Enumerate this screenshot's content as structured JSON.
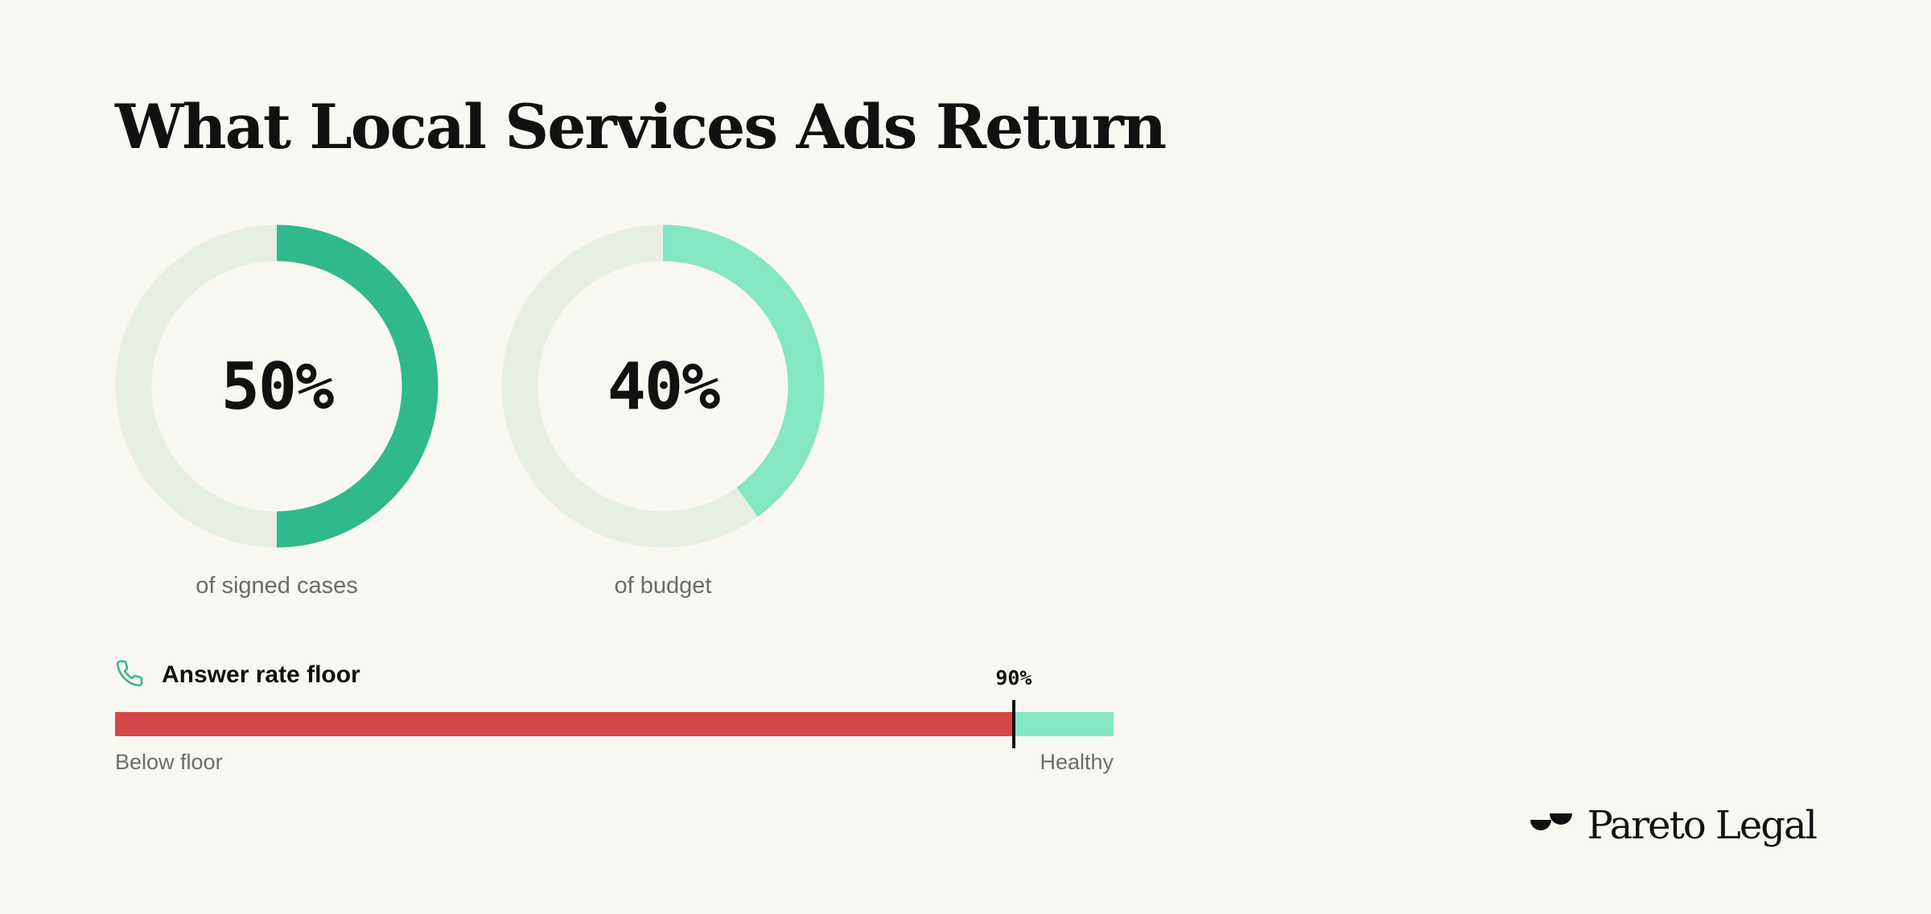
{
  "title": "What Local Services Ads Return",
  "chart_data": [
    {
      "type": "pie",
      "subtype": "donut",
      "value": 50,
      "value_label": "50%",
      "caption": "of signed cases",
      "color": "#30b98d",
      "track_color": "#e7efe5"
    },
    {
      "type": "pie",
      "subtype": "donut",
      "value": 40,
      "value_label": "40%",
      "caption": "of budget",
      "color": "#84e6c3",
      "track_color": "#e7efe5"
    },
    {
      "type": "bar",
      "subtype": "threshold",
      "title": "Answer rate floor",
      "threshold": 90,
      "threshold_label": "90%",
      "range": [
        0,
        100
      ],
      "left_label": "Below floor",
      "right_label": "Healthy",
      "colors": {
        "below": "#d64848",
        "above": "#84e6c3"
      }
    }
  ],
  "icons": {
    "floor": "phone-icon",
    "brand": "pareto-logo-icon"
  },
  "accent_color": "#30b98d",
  "brand": {
    "name": "Pareto Legal"
  }
}
